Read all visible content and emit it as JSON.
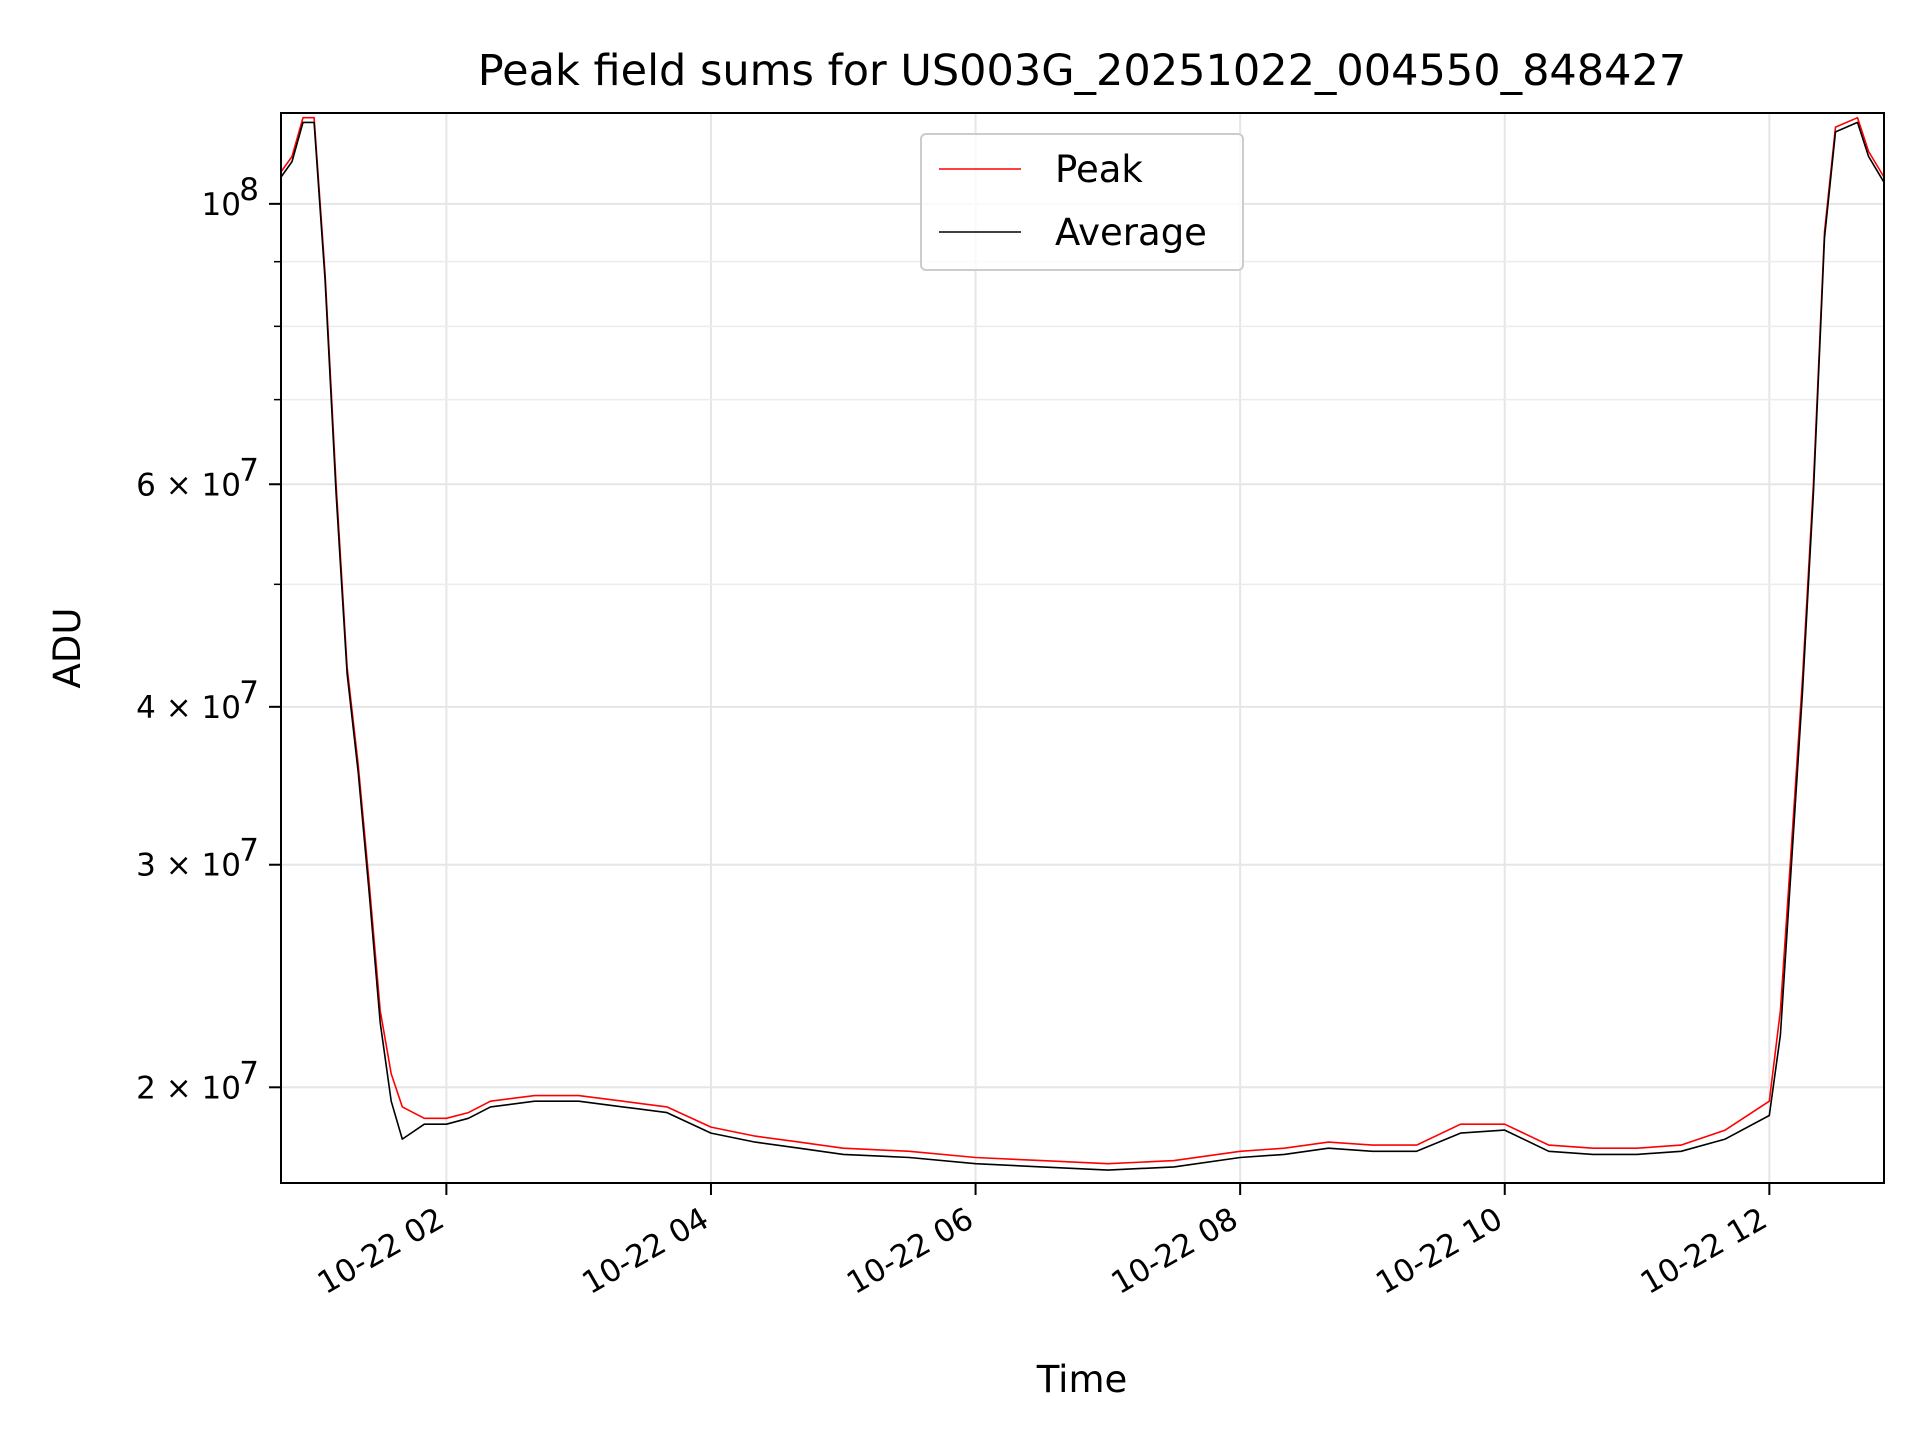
{
  "chart_data": {
    "type": "line",
    "title": "Peak field sums for US003G_20251022_004550_848427",
    "xlabel": "Time",
    "ylabel": "ADU",
    "y_scale": "log",
    "ylim": [
      16800000,
      118000000
    ],
    "xlim": [
      "2025-10-22 00:45",
      "2025-10-22 12:52"
    ],
    "x_ticks": [
      "2025-10-22 02:00",
      "2025-10-22 04:00",
      "2025-10-22 06:00",
      "2025-10-22 08:00",
      "2025-10-22 10:00",
      "2025-10-22 12:00"
    ],
    "x_tick_labels": [
      "10-22 02",
      "10-22 04",
      "10-22 06",
      "10-22 08",
      "10-22 10",
      "10-22 12"
    ],
    "y_major_ticks": [
      20000000,
      30000000,
      40000000,
      60000000,
      100000000
    ],
    "y_major_tick_labels": [
      {
        "mantissa": "2",
        "exp": "7"
      },
      {
        "mantissa": "3",
        "exp": "7"
      },
      {
        "mantissa": "4",
        "exp": "7"
      },
      {
        "mantissa": "6",
        "exp": "7"
      },
      {
        "mantissa": "",
        "exp": "8"
      }
    ],
    "y_minor_ticks": [
      50000000,
      70000000,
      80000000,
      90000000
    ],
    "grid": true,
    "legend_position": "top-center",
    "series": [
      {
        "name": "Peak",
        "color": "#ff0000",
        "points": [
          [
            "2025-10-22 00:45",
            106000000
          ],
          [
            "2025-10-22 00:50",
            109000000
          ],
          [
            "2025-10-22 00:55",
            117000000
          ],
          [
            "2025-10-22 01:00",
            117000000
          ],
          [
            "2025-10-22 01:05",
            88000000
          ],
          [
            "2025-10-22 01:10",
            60000000
          ],
          [
            "2025-10-22 01:15",
            43000000
          ],
          [
            "2025-10-22 01:20",
            36000000
          ],
          [
            "2025-10-22 01:25",
            29000000
          ],
          [
            "2025-10-22 01:30",
            23000000
          ],
          [
            "2025-10-22 01:35",
            20500000
          ],
          [
            "2025-10-22 01:40",
            19300000
          ],
          [
            "2025-10-22 01:50",
            18900000
          ],
          [
            "2025-10-22 02:00",
            18900000
          ],
          [
            "2025-10-22 02:10",
            19100000
          ],
          [
            "2025-10-22 02:20",
            19500000
          ],
          [
            "2025-10-22 02:40",
            19700000
          ],
          [
            "2025-10-22 03:00",
            19700000
          ],
          [
            "2025-10-22 03:20",
            19500000
          ],
          [
            "2025-10-22 03:40",
            19300000
          ],
          [
            "2025-10-22 04:00",
            18600000
          ],
          [
            "2025-10-22 04:20",
            18300000
          ],
          [
            "2025-10-22 04:40",
            18100000
          ],
          [
            "2025-10-22 05:00",
            17900000
          ],
          [
            "2025-10-22 05:30",
            17800000
          ],
          [
            "2025-10-22 06:00",
            17600000
          ],
          [
            "2025-10-22 06:30",
            17500000
          ],
          [
            "2025-10-22 07:00",
            17400000
          ],
          [
            "2025-10-22 07:30",
            17500000
          ],
          [
            "2025-10-22 08:00",
            17800000
          ],
          [
            "2025-10-22 08:20",
            17900000
          ],
          [
            "2025-10-22 08:40",
            18100000
          ],
          [
            "2025-10-22 09:00",
            18000000
          ],
          [
            "2025-10-22 09:20",
            18000000
          ],
          [
            "2025-10-22 09:40",
            18700000
          ],
          [
            "2025-10-22 10:00",
            18700000
          ],
          [
            "2025-10-22 10:20",
            18000000
          ],
          [
            "2025-10-22 10:40",
            17900000
          ],
          [
            "2025-10-22 11:00",
            17900000
          ],
          [
            "2025-10-22 11:20",
            18000000
          ],
          [
            "2025-10-22 11:40",
            18500000
          ],
          [
            "2025-10-22 12:00",
            19500000
          ],
          [
            "2025-10-22 12:05",
            23000000
          ],
          [
            "2025-10-22 12:10",
            31000000
          ],
          [
            "2025-10-22 12:15",
            42000000
          ],
          [
            "2025-10-22 12:20",
            60000000
          ],
          [
            "2025-10-22 12:25",
            95000000
          ],
          [
            "2025-10-22 12:30",
            115000000
          ],
          [
            "2025-10-22 12:40",
            117000000
          ],
          [
            "2025-10-22 12:45",
            110000000
          ],
          [
            "2025-10-22 12:52",
            105000000
          ]
        ]
      },
      {
        "name": "Average",
        "color": "#000000",
        "points": [
          [
            "2025-10-22 00:45",
            105000000
          ],
          [
            "2025-10-22 00:50",
            108000000
          ],
          [
            "2025-10-22 00:55",
            116000000
          ],
          [
            "2025-10-22 01:00",
            116000000
          ],
          [
            "2025-10-22 01:05",
            87000000
          ],
          [
            "2025-10-22 01:10",
            59000000
          ],
          [
            "2025-10-22 01:15",
            42500000
          ],
          [
            "2025-10-22 01:20",
            35500000
          ],
          [
            "2025-10-22 01:25",
            28500000
          ],
          [
            "2025-10-22 01:30",
            22500000
          ],
          [
            "2025-10-22 01:35",
            19500000
          ],
          [
            "2025-10-22 01:40",
            18200000
          ],
          [
            "2025-10-22 01:50",
            18700000
          ],
          [
            "2025-10-22 02:00",
            18700000
          ],
          [
            "2025-10-22 02:10",
            18900000
          ],
          [
            "2025-10-22 02:20",
            19300000
          ],
          [
            "2025-10-22 02:40",
            19500000
          ],
          [
            "2025-10-22 03:00",
            19500000
          ],
          [
            "2025-10-22 03:20",
            19300000
          ],
          [
            "2025-10-22 03:40",
            19100000
          ],
          [
            "2025-10-22 04:00",
            18400000
          ],
          [
            "2025-10-22 04:20",
            18100000
          ],
          [
            "2025-10-22 04:40",
            17900000
          ],
          [
            "2025-10-22 05:00",
            17700000
          ],
          [
            "2025-10-22 05:30",
            17600000
          ],
          [
            "2025-10-22 06:00",
            17400000
          ],
          [
            "2025-10-22 06:30",
            17300000
          ],
          [
            "2025-10-22 07:00",
            17200000
          ],
          [
            "2025-10-22 07:30",
            17300000
          ],
          [
            "2025-10-22 08:00",
            17600000
          ],
          [
            "2025-10-22 08:20",
            17700000
          ],
          [
            "2025-10-22 08:40",
            17900000
          ],
          [
            "2025-10-22 09:00",
            17800000
          ],
          [
            "2025-10-22 09:20",
            17800000
          ],
          [
            "2025-10-22 09:40",
            18400000
          ],
          [
            "2025-10-22 10:00",
            18500000
          ],
          [
            "2025-10-22 10:20",
            17800000
          ],
          [
            "2025-10-22 10:40",
            17700000
          ],
          [
            "2025-10-22 11:00",
            17700000
          ],
          [
            "2025-10-22 11:20",
            17800000
          ],
          [
            "2025-10-22 11:40",
            18200000
          ],
          [
            "2025-10-22 12:00",
            19000000
          ],
          [
            "2025-10-22 12:05",
            22000000
          ],
          [
            "2025-10-22 12:10",
            30000000
          ],
          [
            "2025-10-22 12:15",
            41000000
          ],
          [
            "2025-10-22 12:20",
            59000000
          ],
          [
            "2025-10-22 12:25",
            94000000
          ],
          [
            "2025-10-22 12:30",
            114000000
          ],
          [
            "2025-10-22 12:40",
            116000000
          ],
          [
            "2025-10-22 12:45",
            109000000
          ],
          [
            "2025-10-22 12:52",
            104000000
          ]
        ]
      }
    ]
  }
}
